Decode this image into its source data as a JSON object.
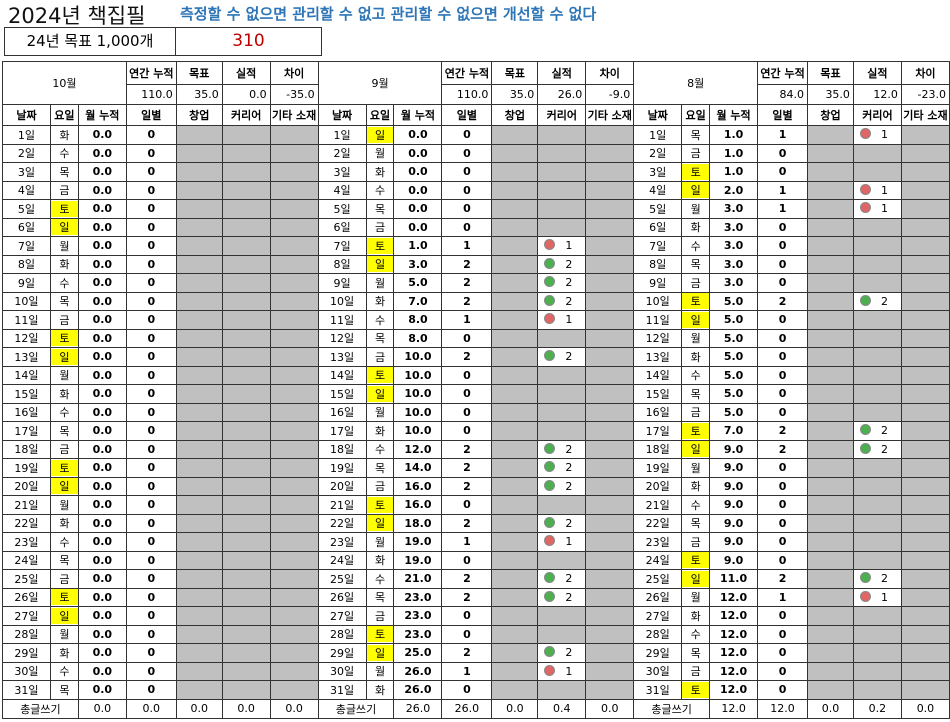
{
  "title": "2024년 책집필",
  "slogan": "측정할 수 없으면  관리할 수 없고 관리할 수 없으면 개선할 수 없다",
  "goal": {
    "label": "24년 목표 1,000개",
    "value": "310"
  },
  "summary_labels": [
    "연간 누적",
    "목표",
    "실적",
    "차이"
  ],
  "column_headers": [
    "날짜",
    "요일",
    "월 누적",
    "일별",
    "창업",
    "커리어",
    "기타 소재"
  ],
  "total_label": "총글쓰기",
  "colors": {
    "weekend": "#ffff00",
    "empty": "#c0c0c0",
    "career_1": "#e06666",
    "career_2": "#4caf50",
    "goal_value": "#c00000",
    "slogan": "#2e75b6"
  },
  "months": [
    {
      "name": "10월",
      "summary": [
        "110.0",
        "35.0",
        "0.0",
        "-35.0"
      ],
      "weekdays": [
        "화",
        "수",
        "목",
        "금",
        "토",
        "일",
        "월",
        "화",
        "수",
        "목",
        "금",
        "토",
        "일",
        "월",
        "화",
        "수",
        "목",
        "금",
        "토",
        "일",
        "월",
        "화",
        "수",
        "목",
        "금",
        "토",
        "일",
        "월",
        "화",
        "수",
        "목"
      ],
      "cum": [
        0,
        0,
        0,
        0,
        0,
        0,
        0,
        0,
        0,
        0,
        0,
        0,
        0,
        0,
        0,
        0,
        0,
        0,
        0,
        0,
        0,
        0,
        0,
        0,
        0,
        0,
        0,
        0,
        0,
        0,
        0
      ],
      "daily": [
        0,
        0,
        0,
        0,
        0,
        0,
        0,
        0,
        0,
        0,
        0,
        0,
        0,
        0,
        0,
        0,
        0,
        0,
        0,
        0,
        0,
        0,
        0,
        0,
        0,
        0,
        0,
        0,
        0,
        0,
        0
      ],
      "career": {},
      "totals": [
        "0.0",
        "0.0",
        "0.0",
        "0.0",
        "0.0"
      ]
    },
    {
      "name": "9월",
      "summary": [
        "110.0",
        "35.0",
        "26.0",
        "-9.0"
      ],
      "weekdays": [
        "일",
        "월",
        "화",
        "수",
        "목",
        "금",
        "토",
        "일",
        "월",
        "화",
        "수",
        "목",
        "금",
        "토",
        "일",
        "월",
        "화",
        "수",
        "목",
        "금",
        "토",
        "일",
        "월",
        "화",
        "수",
        "목",
        "금",
        "토",
        "일",
        "월",
        "화"
      ],
      "cum": [
        0,
        0,
        0,
        0,
        0,
        0,
        1,
        3,
        5,
        7,
        8,
        8,
        10,
        10,
        10,
        10,
        10,
        12,
        14,
        16,
        16,
        18,
        19,
        19,
        21,
        23,
        23,
        23,
        25,
        26,
        26
      ],
      "daily": [
        0,
        0,
        0,
        0,
        0,
        0,
        1,
        2,
        2,
        2,
        1,
        0,
        2,
        0,
        0,
        0,
        0,
        2,
        2,
        2,
        0,
        2,
        1,
        0,
        2,
        2,
        0,
        0,
        2,
        1,
        0
      ],
      "career": {
        "7": 1,
        "8": 2,
        "9": 2,
        "10": 2,
        "11": 1,
        "13": 2,
        "18": 2,
        "19": 2,
        "20": 2,
        "22": 2,
        "23": 1,
        "25": 2,
        "26": 2,
        "29": 2,
        "30": 1
      },
      "totals": [
        "26.0",
        "26.0",
        "0.0",
        "0.4",
        "0.0"
      ]
    },
    {
      "name": "8월",
      "summary": [
        "84.0",
        "35.0",
        "12.0",
        "-23.0"
      ],
      "weekdays": [
        "목",
        "금",
        "토",
        "일",
        "월",
        "화",
        "수",
        "목",
        "금",
        "토",
        "일",
        "월",
        "화",
        "수",
        "목",
        "금",
        "토",
        "일",
        "월",
        "화",
        "수",
        "목",
        "금",
        "토",
        "일",
        "월",
        "화",
        "수",
        "목",
        "금",
        "토"
      ],
      "cum": [
        1,
        1,
        1,
        2,
        3,
        3,
        3,
        3,
        3,
        5,
        5,
        5,
        5,
        5,
        5,
        5,
        7,
        9,
        9,
        9,
        9,
        9,
        9,
        9,
        11,
        12,
        12,
        12,
        12,
        12,
        12
      ],
      "daily": [
        1,
        0,
        0,
        1,
        1,
        0,
        0,
        0,
        0,
        2,
        0,
        0,
        0,
        0,
        0,
        0,
        2,
        2,
        0,
        0,
        0,
        0,
        0,
        0,
        2,
        1,
        0,
        0,
        0,
        0,
        0
      ],
      "career": {
        "1": 1,
        "4": 1,
        "5": 1,
        "10": 2,
        "17": 2,
        "18": 2,
        "25": 2,
        "26": 1
      },
      "totals": [
        "12.0",
        "12.0",
        "0.0",
        "0.2",
        "0.0"
      ]
    }
  ]
}
